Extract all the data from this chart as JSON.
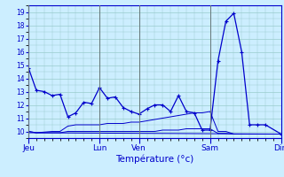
{
  "title": "",
  "xlabel": "Température (°c)",
  "ylabel": "",
  "bg_color": "#cceeff",
  "grid_color": "#99cccc",
  "line_color": "#0000cc",
  "sep_color": "#667777",
  "text_color": "#0000cc",
  "ylim": [
    9.5,
    19.5
  ],
  "yticks": [
    10,
    11,
    12,
    13,
    14,
    15,
    16,
    17,
    18,
    19
  ],
  "day_labels": [
    "Jeu",
    "Lun",
    "Ven",
    "Sam",
    "Dim"
  ],
  "day_positions": [
    0,
    54,
    84,
    138,
    192
  ],
  "xlim": [
    0,
    192
  ],
  "series": {
    "line1_x": [
      0,
      6,
      12,
      18,
      24,
      30,
      36,
      42,
      48,
      54,
      60,
      66,
      72,
      78,
      84,
      90,
      96,
      102,
      108,
      114,
      120,
      126,
      132,
      138,
      144,
      150,
      156,
      162,
      168,
      174,
      180,
      192
    ],
    "line1_y": [
      14.8,
      13.1,
      13.0,
      12.7,
      12.8,
      11.1,
      11.4,
      12.2,
      12.1,
      13.3,
      12.5,
      12.6,
      11.8,
      11.5,
      11.3,
      11.7,
      12.0,
      12.0,
      11.5,
      12.7,
      11.5,
      11.4,
      10.1,
      10.1,
      15.3,
      18.3,
      18.9,
      16.0,
      10.5,
      10.5,
      10.5,
      9.8
    ],
    "line2_x": [
      0,
      6,
      12,
      18,
      24,
      30,
      36,
      42,
      48,
      54,
      60,
      66,
      72,
      78,
      84,
      90,
      96,
      102,
      108,
      114,
      120,
      126,
      132,
      138,
      144,
      150,
      156,
      162,
      168,
      174,
      180,
      192
    ],
    "line2_y": [
      10.0,
      9.9,
      9.95,
      10.0,
      10.0,
      10.4,
      10.5,
      10.5,
      10.5,
      10.5,
      10.6,
      10.6,
      10.6,
      10.7,
      10.7,
      10.8,
      10.9,
      11.0,
      11.1,
      11.2,
      11.3,
      11.4,
      11.4,
      11.5,
      10.0,
      10.0,
      9.8,
      9.8,
      9.8,
      9.8,
      9.8,
      9.8
    ],
    "line3_x": [
      0,
      6,
      12,
      18,
      24,
      30,
      36,
      42,
      48,
      54,
      60,
      66,
      72,
      78,
      84,
      90,
      96,
      102,
      108,
      114,
      120,
      126,
      132,
      138,
      144,
      150,
      156,
      162,
      168,
      174,
      180,
      192
    ],
    "line3_y": [
      10.0,
      9.9,
      9.9,
      9.9,
      9.9,
      10.0,
      10.0,
      10.0,
      10.0,
      10.0,
      10.0,
      10.0,
      10.0,
      10.0,
      10.0,
      10.0,
      10.0,
      10.1,
      10.1,
      10.1,
      10.2,
      10.2,
      10.2,
      10.2,
      9.85,
      9.85,
      9.8,
      9.8,
      9.8,
      9.8,
      9.8,
      9.8
    ],
    "line4_x": [
      0,
      192
    ],
    "line4_y": [
      9.9,
      9.8
    ]
  }
}
